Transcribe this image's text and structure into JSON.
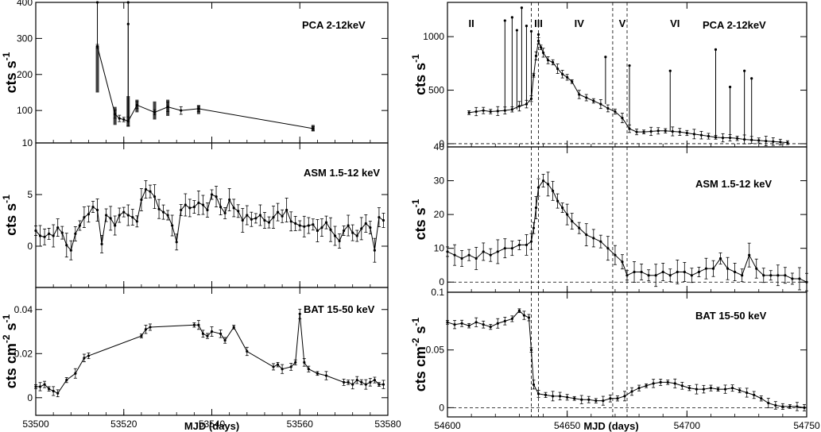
{
  "chart_data": [
    {
      "type": "line",
      "panel": "left-top",
      "title": "PCA 2-12keV",
      "ylabel": "cts s",
      "ylabel_sup": "-1",
      "xlim": [
        53500,
        53580
      ],
      "ylim": [
        10,
        400
      ],
      "yticks": [
        100,
        200,
        300,
        400
      ],
      "ytick_labels": [
        "100",
        "200",
        "300",
        "400"
      ],
      "ybottom_label": "10",
      "series": [
        {
          "x": [
            53514,
            53518,
            53519,
            53520,
            53521,
            53523,
            53527,
            53530,
            53533,
            53537,
            53563
          ],
          "y": [
            278,
            90,
            78,
            75,
            70,
            115,
            95,
            110,
            100,
            105,
            50
          ]
        }
      ],
      "spikes": [
        {
          "x": 53514,
          "y": 400
        },
        {
          "x": 53521,
          "y": 400
        },
        {
          "x": 53521,
          "y": 340
        }
      ],
      "clusters": [
        {
          "x": 53514,
          "ymin": 150,
          "ymax": 280
        },
        {
          "x": 53518,
          "ymin": 60,
          "ymax": 110
        },
        {
          "x": 53521,
          "ymin": 55,
          "ymax": 140
        },
        {
          "x": 53523,
          "ymin": 95,
          "ymax": 130
        },
        {
          "x": 53527,
          "ymin": 75,
          "ymax": 125
        },
        {
          "x": 53530,
          "ymin": 85,
          "ymax": 130
        },
        {
          "x": 53537,
          "ymin": 90,
          "ymax": 115
        },
        {
          "x": 53563,
          "ymin": 42,
          "ymax": 60
        }
      ]
    },
    {
      "type": "line",
      "panel": "left-middle",
      "title": "ASM 1.5-12 keV",
      "ylabel": "cts s",
      "ylabel_sup": "-1",
      "xlim": [
        53500,
        53580
      ],
      "ylim": [
        -4,
        10
      ],
      "yticks": [
        0,
        5
      ],
      "ytick_labels": [
        "0",
        "5"
      ],
      "series": [
        {
          "x": [
            53500,
            53501,
            53502,
            53503,
            53504,
            53505,
            53506,
            53507,
            53508,
            53509,
            53510,
            53511,
            53512,
            53513,
            53514,
            53515,
            53516,
            53517,
            53518,
            53519,
            53520,
            53521,
            53522,
            53523,
            53524,
            53525,
            53526,
            53527,
            53528,
            53529,
            53530,
            53531,
            53532,
            53533,
            53534,
            53535,
            53536,
            53537,
            53538,
            53539,
            53540,
            53541,
            53542,
            53543,
            53544,
            53545,
            53546,
            53547,
            53548,
            53549,
            53550,
            53551,
            53552,
            53553,
            53554,
            53555,
            53556,
            53557,
            53558,
            53559,
            53560,
            53561,
            53562,
            53563,
            53564,
            53565,
            53566,
            53567,
            53568,
            53569,
            53570,
            53571,
            53572,
            53573,
            53574,
            53575,
            53576,
            53577,
            53578,
            53579
          ],
          "y": [
            1.5,
            1.0,
            0.9,
            1.2,
            1.0,
            1.8,
            1.3,
            0.1,
            -0.4,
            1.2,
            2.0,
            2.8,
            3.1,
            3.8,
            3.5,
            0.2,
            3.0,
            2.7,
            2.0,
            3.0,
            3.3,
            3.0,
            2.8,
            2.4,
            4.5,
            5.5,
            5.3,
            4.8,
            3.6,
            3.3,
            3.0,
            2.0,
            0.4,
            3.5,
            4.0,
            3.7,
            3.8,
            4.2,
            4.0,
            3.5,
            5.0,
            4.8,
            3.8,
            3.2,
            4.5,
            3.7,
            3.4,
            2.5,
            3.0,
            2.6,
            2.7,
            3.0,
            2.5,
            2.3,
            2.8,
            3.3,
            2.9,
            3.5,
            2.4,
            2.2,
            2.0,
            1.9,
            2.0,
            2.1,
            1.5,
            1.8,
            2.3,
            1.6,
            1.0,
            0.5,
            1.5,
            2.0,
            1.3,
            1.0,
            1.7,
            2.2,
            1.8,
            -0.4,
            2.8,
            2.5
          ]
        }
      ]
    },
    {
      "type": "line",
      "panel": "left-bottom",
      "title": "BAT 15-50 keV",
      "ylabel": "cts cm",
      "ylabel_sup": "-2",
      "ylabel_tail": " s",
      "ylabel_tail_sup": "-1",
      "xlabel": "MJD (days)",
      "xlim": [
        53500,
        53580
      ],
      "ylim": [
        -0.008,
        0.05
      ],
      "xticks": [
        53500,
        53520,
        53540,
        53560,
        53580
      ],
      "xtick_labels": [
        "53500",
        "53520",
        "53540",
        "53560",
        "53580"
      ],
      "yticks": [
        0,
        0.02,
        0.04
      ],
      "ytick_labels": [
        "0",
        "0.02",
        "0.04"
      ],
      "series": [
        {
          "x": [
            53500,
            53501,
            53502,
            53503,
            53504,
            53505,
            53507,
            53509,
            53511,
            53512,
            53524,
            53525,
            53526,
            53536,
            53537,
            53538,
            53539,
            53540,
            53542,
            53543,
            53545,
            53548,
            53554,
            53555,
            53556,
            53558,
            53559,
            53560,
            53561,
            53562,
            53564,
            53566,
            53570,
            53571,
            53572,
            53573,
            53574,
            53575,
            53576,
            53577,
            53578,
            53579
          ],
          "y": [
            0.005,
            0.005,
            0.006,
            0.004,
            0.003,
            0.002,
            0.008,
            0.011,
            0.018,
            0.019,
            0.028,
            0.031,
            0.032,
            0.033,
            0.033,
            0.029,
            0.028,
            0.03,
            0.029,
            0.026,
            0.032,
            0.021,
            0.014,
            0.015,
            0.013,
            0.014,
            0.016,
            0.038,
            0.016,
            0.013,
            0.011,
            0.01,
            0.007,
            0.007,
            0.006,
            0.008,
            0.007,
            0.006,
            0.007,
            0.008,
            0.006,
            0.006
          ]
        }
      ]
    },
    {
      "type": "line",
      "panel": "right-top",
      "title": "PCA 2-12keV",
      "ylabel": "cts s",
      "ylabel_sup": "-1",
      "xlim": [
        54600,
        54750
      ],
      "ylim": [
        -30,
        1320
      ],
      "yticks": [
        0,
        500,
        1000
      ],
      "ytick_labels": [
        "0",
        "500",
        "1000"
      ],
      "phases": [
        "II",
        "III",
        "IV",
        "V",
        "VI"
      ],
      "phase_x": [
        54610,
        54638,
        54655,
        54673,
        54695
      ],
      "phase_lines": [
        54635,
        54638,
        54669,
        54675
      ],
      "series": [
        {
          "x": [
            54609,
            54612,
            54615,
            54618,
            54621,
            54624,
            54627,
            54630,
            54633,
            54635,
            54636,
            54637,
            54638,
            54639,
            54640,
            54642,
            54644,
            54646,
            54648,
            54650,
            54652,
            54655,
            54658,
            54661,
            54664,
            54667,
            54670,
            54673,
            54676,
            54679,
            54682,
            54685,
            54688,
            54691,
            54694,
            54697,
            54700,
            54703,
            54706,
            54709,
            54712,
            54715,
            54718,
            54721,
            54724,
            54727,
            54730,
            54733,
            54736,
            54739,
            54742
          ],
          "y": [
            290,
            300,
            310,
            300,
            305,
            310,
            320,
            350,
            370,
            420,
            640,
            820,
            960,
            900,
            850,
            780,
            760,
            700,
            650,
            620,
            580,
            460,
            430,
            400,
            370,
            330,
            300,
            240,
            140,
            110,
            110,
            115,
            120,
            120,
            115,
            110,
            100,
            90,
            80,
            70,
            60,
            55,
            55,
            50,
            40,
            35,
            30,
            25,
            20,
            15,
            10
          ]
        }
      ],
      "spikes": [
        {
          "x": 54624,
          "y": 1150
        },
        {
          "x": 54627,
          "y": 1180
        },
        {
          "x": 54629,
          "y": 1060
        },
        {
          "x": 54631,
          "y": 1270
        },
        {
          "x": 54633,
          "y": 1100
        },
        {
          "x": 54635,
          "y": 1050
        },
        {
          "x": 54638,
          "y": 1020
        },
        {
          "x": 54666,
          "y": 810
        },
        {
          "x": 54676,
          "y": 730
        },
        {
          "x": 54693,
          "y": 680
        },
        {
          "x": 54712,
          "y": 880
        },
        {
          "x": 54718,
          "y": 530
        },
        {
          "x": 54724,
          "y": 680
        },
        {
          "x": 54727,
          "y": 610
        }
      ]
    },
    {
      "type": "line",
      "panel": "right-middle",
      "title": "ASM 1.5-12 keV",
      "ylabel": "cts s",
      "ylabel_sup": "-1",
      "xlim": [
        54600,
        54750
      ],
      "ylim": [
        -3,
        40
      ],
      "yticks": [
        0,
        10,
        20,
        30,
        40
      ],
      "ytick_labels": [
        "0",
        "10",
        "20",
        "30",
        "40"
      ],
      "phase_lines": [
        54635,
        54638,
        54669,
        54675
      ],
      "series": [
        {
          "x": [
            54600,
            54603,
            54606,
            54609,
            54612,
            54615,
            54618,
            54621,
            54624,
            54627,
            54630,
            54633,
            54635,
            54636,
            54637,
            54638,
            54640,
            54642,
            54644,
            54646,
            54648,
            54650,
            54652,
            54655,
            54658,
            54661,
            54664,
            54667,
            54670,
            54673,
            54675,
            54678,
            54681,
            54684,
            54687,
            54690,
            54693,
            54696,
            54699,
            54702,
            54705,
            54708,
            54711,
            54714,
            54717,
            54720,
            54723,
            54726,
            54729,
            54732,
            54735,
            54738,
            54741,
            54744,
            54747,
            54750
          ],
          "y": [
            9,
            8,
            7,
            8,
            7,
            9,
            8,
            9,
            10,
            10,
            11,
            11,
            12,
            16,
            22,
            28,
            30,
            29,
            27,
            24,
            22,
            20,
            18,
            16,
            14,
            13,
            12,
            10,
            8,
            6,
            2,
            3,
            3,
            2,
            2,
            3,
            2,
            3,
            3,
            2,
            3,
            4,
            4,
            7,
            4,
            3,
            2,
            8,
            4,
            2,
            2,
            2,
            2,
            1,
            1,
            0
          ]
        }
      ]
    },
    {
      "type": "line",
      "panel": "right-bottom",
      "title": "BAT 15-50 keV",
      "ylabel": "cts cm",
      "ylabel_sup": "-2",
      "ylabel_tail": " s",
      "ylabel_tail_sup": "-1",
      "xlabel": "MJD (days)",
      "xlim": [
        54600,
        54750
      ],
      "ylim": [
        -0.008,
        0.1
      ],
      "xticks": [
        54600,
        54650,
        54700,
        54750
      ],
      "xtick_labels": [
        "54600",
        "54650",
        "54700",
        "54750"
      ],
      "yticks": [
        0,
        0.05,
        0.1
      ],
      "ytick_labels": [
        "0",
        "0.05",
        "0.1"
      ],
      "phase_lines": [
        54635,
        54638,
        54669,
        54675
      ],
      "series": [
        {
          "x": [
            54600,
            54603,
            54606,
            54609,
            54612,
            54615,
            54618,
            54621,
            54624,
            54627,
            54630,
            54632,
            54634,
            54635,
            54636,
            54638,
            54641,
            54644,
            54647,
            54650,
            54653,
            54656,
            54659,
            54662,
            54665,
            54668,
            54671,
            54674,
            54677,
            54680,
            54683,
            54686,
            54689,
            54692,
            54695,
            54698,
            54701,
            54704,
            54707,
            54710,
            54713,
            54716,
            54719,
            54722,
            54725,
            54728,
            54731,
            54734,
            54737,
            54740,
            54743,
            54746,
            54749
          ],
          "y": [
            0.074,
            0.072,
            0.073,
            0.071,
            0.074,
            0.072,
            0.07,
            0.073,
            0.075,
            0.077,
            0.084,
            0.08,
            0.078,
            0.05,
            0.02,
            0.012,
            0.011,
            0.01,
            0.01,
            0.009,
            0.008,
            0.007,
            0.007,
            0.006,
            0.006,
            0.008,
            0.008,
            0.01,
            0.014,
            0.017,
            0.019,
            0.021,
            0.022,
            0.022,
            0.021,
            0.019,
            0.017,
            0.016,
            0.016,
            0.017,
            0.016,
            0.016,
            0.017,
            0.015,
            0.013,
            0.011,
            0.008,
            0.004,
            0.002,
            0.001,
            0.001,
            0.001,
            0.0
          ]
        }
      ]
    }
  ]
}
